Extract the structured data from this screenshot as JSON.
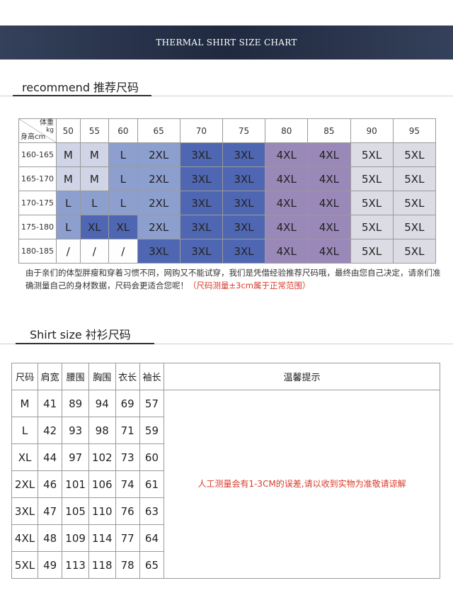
{
  "banner": {
    "title": "THERMAL SHIRT SIZE CHART"
  },
  "section1": {
    "title": "recommend  推荐尺码"
  },
  "size_table": {
    "corner_weight": "体重",
    "corner_unit": "kg",
    "corner_height": "身高cm",
    "weights": [
      "50",
      "55",
      "60",
      "65",
      "70",
      "75",
      "80",
      "85",
      "90",
      "95"
    ],
    "rows": [
      {
        "height": "160-165",
        "cells": [
          "M",
          "M",
          "L",
          "2XL",
          "3XL",
          "3XL",
          "4XL",
          "4XL",
          "5XL",
          "5XL"
        ]
      },
      {
        "height": "165-170",
        "cells": [
          "M",
          "M",
          "L",
          "2XL",
          "3XL",
          "3XL",
          "4XL",
          "4XL",
          "5XL",
          "5XL"
        ]
      },
      {
        "height": "170-175",
        "cells": [
          "L",
          "L",
          "L",
          "2XL",
          "3XL",
          "3XL",
          "4XL",
          "4XL",
          "5XL",
          "5XL"
        ]
      },
      {
        "height": "175-180",
        "cells": [
          "L",
          "XL",
          "XL",
          "2XL",
          "3XL",
          "3XL",
          "4XL",
          "4XL",
          "5XL",
          "5XL"
        ]
      },
      {
        "height": "180-185",
        "cells": [
          "/",
          "/",
          "/",
          "3XL",
          "3XL",
          "3XL",
          "4XL",
          "4XL",
          "5XL",
          "5XL"
        ]
      }
    ],
    "colors": {
      "M": "#cfd4e6",
      "L": "#8d9fcf",
      "XL": "#4f67b2",
      "2XL": "#8d9fcf",
      "3XL": "#4f67b2",
      "4XL": "#9a88b8",
      "5XL": "#dcdde4",
      "/": "#fefefe"
    }
  },
  "note": {
    "text": "由于亲们的体型胖瘦和穿着习惯不同，网购又不能试穿，我们是凭借经验推荐尺码哦，最终由您自己决定，请亲们准确测量自己的身材数据，尺码会更适合您呢！",
    "red_text": "（尺码测量±3cm属于正常范围）"
  },
  "section2": {
    "title": "Shirt size  衬衫尺码"
  },
  "shirt_table": {
    "headers": [
      "尺码",
      "肩宽",
      "腰围",
      "胸围",
      "衣长",
      "袖长",
      "温馨提示"
    ],
    "rows": [
      [
        "M",
        "41",
        "89",
        "94",
        "69",
        "57"
      ],
      [
        "L",
        "42",
        "93",
        "98",
        "71",
        "59"
      ],
      [
        "XL",
        "44",
        "97",
        "102",
        "73",
        "60"
      ],
      [
        "2XL",
        "46",
        "101",
        "106",
        "74",
        "61"
      ],
      [
        "3XL",
        "47",
        "105",
        "110",
        "76",
        "63"
      ],
      [
        "4XL",
        "48",
        "109",
        "114",
        "77",
        "64"
      ],
      [
        "5XL",
        "49",
        "113",
        "118",
        "78",
        "65"
      ]
    ],
    "tip": "人工测量会有1-3CM的误差,请以收到实物为准敬请谅解"
  }
}
